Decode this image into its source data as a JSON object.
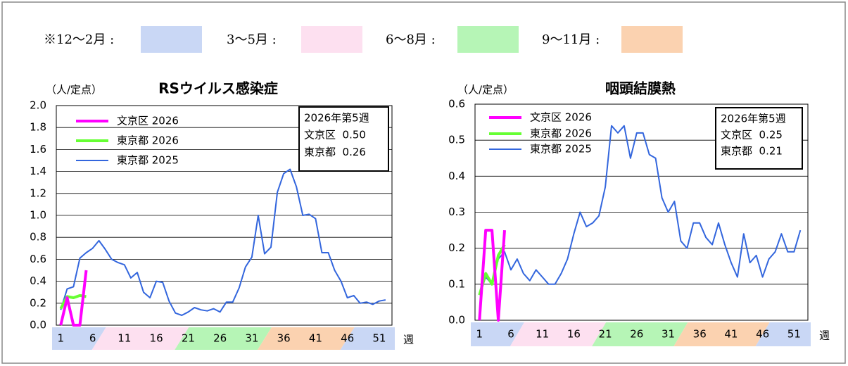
{
  "legend": {
    "items": [
      {
        "label": "※12～2月 :",
        "color": "#c9d7f5"
      },
      {
        "label": "3～5月 :",
        "color": "#fde0f0"
      },
      {
        "label": "6～8月 :",
        "color": "#b6f5b6"
      },
      {
        "label": "9～11月 :",
        "color": "#fbd2b0"
      }
    ]
  },
  "chart_data": [
    {
      "type": "line",
      "title": "RSウイルス感染症",
      "ylabel": "（人/定点）",
      "xlabel": "週",
      "x": [
        1,
        2,
        3,
        4,
        5,
        6,
        7,
        8,
        9,
        10,
        11,
        12,
        13,
        14,
        15,
        16,
        17,
        18,
        19,
        20,
        21,
        22,
        23,
        24,
        25,
        26,
        27,
        28,
        29,
        30,
        31,
        32,
        33,
        34,
        35,
        36,
        37,
        38,
        39,
        40,
        41,
        42,
        43,
        44,
        45,
        46,
        47,
        48,
        49,
        50,
        51,
        52
      ],
      "xlim": [
        0.3,
        53
      ],
      "xticks": [
        1,
        6,
        11,
        16,
        21,
        26,
        31,
        36,
        41,
        46,
        51
      ],
      "ylim": [
        0,
        2
      ],
      "yticks": [
        {
          "value": 0,
          "label": "0.0"
        },
        0.2,
        0.4,
        0.6,
        0.8,
        {
          "value": 1,
          "label": "1.0"
        },
        1.2,
        1.4,
        1.6,
        1.8,
        {
          "value": 2,
          "label": "2.0"
        }
      ],
      "grid": true,
      "series": [
        {
          "name": "文京区 2026",
          "color": "#ff00ff",
          "values": [
            0,
            0.25,
            0,
            0,
            0.5,
            null,
            null,
            null,
            null,
            null,
            null,
            null,
            null,
            null,
            null,
            null,
            null,
            null,
            null,
            null,
            null,
            null,
            null,
            null,
            null,
            null,
            null,
            null,
            null,
            null,
            null,
            null,
            null,
            null,
            null,
            null,
            null,
            null,
            null,
            null,
            null,
            null,
            null,
            null,
            null,
            null,
            null,
            null,
            null,
            null,
            null,
            null
          ]
        },
        {
          "name": "東京都 2026",
          "color": "#66ff33",
          "values": [
            0.15,
            0.26,
            0.25,
            0.27,
            0.26,
            null,
            null,
            null,
            null,
            null,
            null,
            null,
            null,
            null,
            null,
            null,
            null,
            null,
            null,
            null,
            null,
            null,
            null,
            null,
            null,
            null,
            null,
            null,
            null,
            null,
            null,
            null,
            null,
            null,
            null,
            null,
            null,
            null,
            null,
            null,
            null,
            null,
            null,
            null,
            null,
            null,
            null,
            null,
            null,
            null,
            null,
            null
          ]
        },
        {
          "name": "東京都 2025",
          "color": "#3366dd",
          "values": [
            0.14,
            0.33,
            0.35,
            0.61,
            0.66,
            0.7,
            0.77,
            0.69,
            0.6,
            0.57,
            0.55,
            0.43,
            0.48,
            0.3,
            0.25,
            0.4,
            0.39,
            0.22,
            0.11,
            0.09,
            0.12,
            0.16,
            0.14,
            0.13,
            0.15,
            0.12,
            0.21,
            0.21,
            0.34,
            0.53,
            0.62,
            1.0,
            0.65,
            0.71,
            1.21,
            1.38,
            1.42,
            1.26,
            1.0,
            1.01,
            0.97,
            0.66,
            0.66,
            0.5,
            0.4,
            0.25,
            0.27,
            0.2,
            0.21,
            0.19,
            0.22,
            0.23
          ]
        }
      ],
      "annotation": [
        "2026年第5週",
        "文京区  0.50",
        "東京都  0.26"
      ]
    },
    {
      "type": "line",
      "title": "咽頭結膜熱",
      "ylabel": "（人/定点）",
      "xlabel": "週",
      "x": [
        1,
        2,
        3,
        4,
        5,
        6,
        7,
        8,
        9,
        10,
        11,
        12,
        13,
        14,
        15,
        16,
        17,
        18,
        19,
        20,
        21,
        22,
        23,
        24,
        25,
        26,
        27,
        28,
        29,
        30,
        31,
        32,
        33,
        34,
        35,
        36,
        37,
        38,
        39,
        40,
        41,
        42,
        43,
        44,
        45,
        46,
        47,
        48,
        49,
        50,
        51,
        52
      ],
      "xlim": [
        0.3,
        53.2
      ],
      "xticks": [
        1,
        6,
        11,
        16,
        21,
        26,
        31,
        36,
        41,
        46,
        51
      ],
      "ylim": [
        0,
        0.6
      ],
      "yticks": [
        {
          "value": 0,
          "label": "0.0"
        },
        0.1,
        0.2,
        0.3,
        0.4,
        0.5,
        0.6
      ],
      "grid": true,
      "series": [
        {
          "name": "文京区 2026",
          "color": "#ff00ff",
          "values": [
            0,
            0.25,
            0.25,
            0,
            0.25,
            null,
            null,
            null,
            null,
            null,
            null,
            null,
            null,
            null,
            null,
            null,
            null,
            null,
            null,
            null,
            null,
            null,
            null,
            null,
            null,
            null,
            null,
            null,
            null,
            null,
            null,
            null,
            null,
            null,
            null,
            null,
            null,
            null,
            null,
            null,
            null,
            null,
            null,
            null,
            null,
            null,
            null,
            null,
            null,
            null,
            null,
            null
          ]
        },
        {
          "name": "東京都 2026",
          "color": "#66ff33",
          "values": [
            0.07,
            0.13,
            0.1,
            0.18,
            0.21,
            null,
            null,
            null,
            null,
            null,
            null,
            null,
            null,
            null,
            null,
            null,
            null,
            null,
            null,
            null,
            null,
            null,
            null,
            null,
            null,
            null,
            null,
            null,
            null,
            null,
            null,
            null,
            null,
            null,
            null,
            null,
            null,
            null,
            null,
            null,
            null,
            null,
            null,
            null,
            null,
            null,
            null,
            null,
            null,
            null,
            null,
            null
          ]
        },
        {
          "name": "東京都 2025",
          "color": "#3366dd",
          "values": [
            0.07,
            0.12,
            0.1,
            0.17,
            0.19,
            0.14,
            0.17,
            0.13,
            0.11,
            0.14,
            0.12,
            0.1,
            0.1,
            0.13,
            0.17,
            0.24,
            0.3,
            0.26,
            0.27,
            0.29,
            0.37,
            0.54,
            0.52,
            0.54,
            0.45,
            0.52,
            0.52,
            0.46,
            0.45,
            0.34,
            0.3,
            0.33,
            0.22,
            0.2,
            0.27,
            0.27,
            0.23,
            0.21,
            0.27,
            0.21,
            0.16,
            0.12,
            0.24,
            0.16,
            0.18,
            0.12,
            0.17,
            0.19,
            0.24,
            0.19,
            0.19,
            0.25
          ]
        }
      ],
      "annotation": [
        "2026年第5週",
        "文京区  0.25",
        "東京都  0.21"
      ]
    }
  ]
}
